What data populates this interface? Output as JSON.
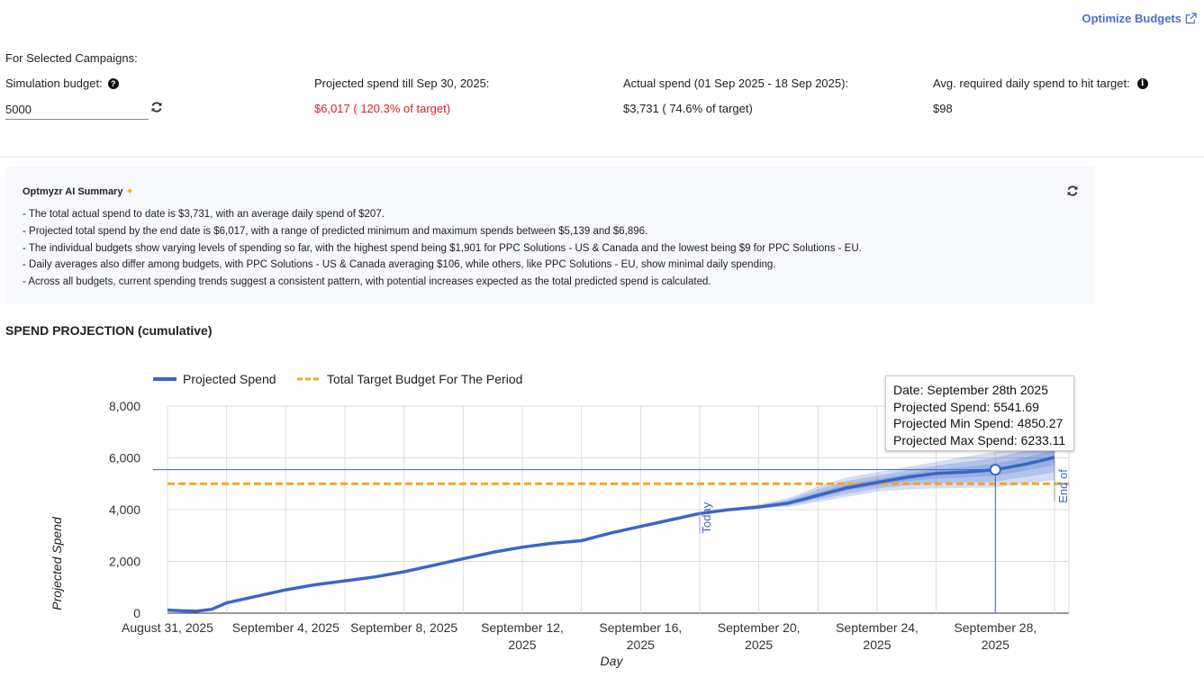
{
  "header": {
    "optimize_link": "Optimize Budgets"
  },
  "summary_header": "For Selected Campaigns:",
  "stats": {
    "simulation_budget_label": "Simulation budget:",
    "simulation_budget_value": "5000",
    "projected_label": "Projected spend till Sep 30, 2025:",
    "projected_value": "$6,017 ( 120.3% of target)",
    "actual_label": "Actual spend (01 Sep 2025 - 18 Sep 2025):",
    "actual_value": "$3,731 ( 74.6% of target)",
    "avg_label": "Avg. required daily spend to hit target:",
    "avg_value": "$98"
  },
  "ai_summary": {
    "title": "Optmyzr AI Summary",
    "lines": [
      "- The total actual spend to date is $3,731, with an average daily spend of $207.",
      "- Projected total spend by the end date is $6,017, with a range of predicted minimum and maximum spends between $5,139 and $6,896.",
      "- The individual budgets show varying levels of spending so far, with the highest spend being $1,901 for PPC Solutions - US & Canada and the lowest being $9 for PPC Solutions - EU.",
      "- Daily averages also differ among budgets, with PPC Solutions - US & Canada averaging $106, while others, like PPC Solutions - EU, show minimal daily spending.",
      "- Across all budgets, current spending trends suggest a consistent pattern, with potential increases expected as the total predicted spend is calculated."
    ]
  },
  "section_title": "SPEND PROJECTION (cumulative)",
  "tooltip": {
    "date": "Date: September 28th 2025",
    "projected": "Projected Spend: 5541.69",
    "min": "Projected Min Spend: 4850.27",
    "max": "Projected Max Spend: 6233.11"
  },
  "colors": {
    "accent": "#4a6fd6",
    "series": "#3a66c8",
    "target": "#f5a623",
    "red": "#e02020"
  },
  "chart_data": {
    "type": "line",
    "xlabel": "Day",
    "ylabel": "Projected Spend",
    "ylim": [
      0,
      8000
    ],
    "y_ticks": [
      "0",
      "2,000",
      "4,000",
      "6,000",
      "8,000"
    ],
    "y_tick_values": [
      0,
      2000,
      4000,
      6000,
      8000
    ],
    "x_tick_labels": [
      [
        "August 31, 2025",
        ""
      ],
      [
        "September 4, 2025",
        ""
      ],
      [
        "September 8, 2025",
        ""
      ],
      [
        "September 12,",
        "2025"
      ],
      [
        "September 16,",
        "2025"
      ],
      [
        "September 20,",
        "2025"
      ],
      [
        "September 24,",
        "2025"
      ],
      [
        "September 28,",
        "2025"
      ]
    ],
    "x_tick_days": [
      0,
      4,
      8,
      12,
      16,
      20,
      24,
      28
    ],
    "legend": [
      "Projected Spend",
      "Total Target Budget For The Period"
    ],
    "legend_position": "top",
    "target_budget": 5000,
    "today_label": "Today",
    "today_day": 18,
    "end_label": "End of",
    "end_day": 30,
    "highlight_day": 28,
    "highlight_value": 5541.69,
    "series": [
      {
        "name": "Projected Spend",
        "x": [
          0,
          0.5,
          1,
          1.5,
          2,
          3,
          4,
          5,
          6,
          7,
          8,
          9,
          10,
          11,
          12,
          13,
          14,
          14.5,
          15,
          16,
          17,
          18,
          19,
          20,
          21,
          22,
          23,
          24,
          25,
          26,
          27,
          28,
          29,
          30
        ],
        "y": [
          120,
          90,
          80,
          150,
          400,
          650,
          900,
          1100,
          1250,
          1400,
          1600,
          1850,
          2100,
          2350,
          2550,
          2700,
          2800,
          2950,
          3100,
          3350,
          3600,
          3850,
          4000,
          4100,
          4250,
          4550,
          4850,
          5050,
          5250,
          5400,
          5450,
          5541.69,
          5750,
          6017
        ]
      }
    ],
    "band_max": {
      "x": [
        18,
        19,
        20,
        21,
        22,
        23,
        24,
        25,
        26,
        27,
        28,
        29,
        30
      ],
      "y": [
        3850,
        4020,
        4200,
        4450,
        4900,
        5250,
        5450,
        5650,
        5850,
        6050,
        6233.11,
        6550,
        6896
      ]
    },
    "band_min": {
      "x": [
        18,
        19,
        20,
        21,
        22,
        23,
        24,
        25,
        26,
        27,
        28,
        29,
        30
      ],
      "y": [
        3850,
        3980,
        4050,
        4100,
        4300,
        4500,
        4700,
        4780,
        4820,
        4840,
        4850.27,
        5000,
        5139
      ]
    }
  }
}
